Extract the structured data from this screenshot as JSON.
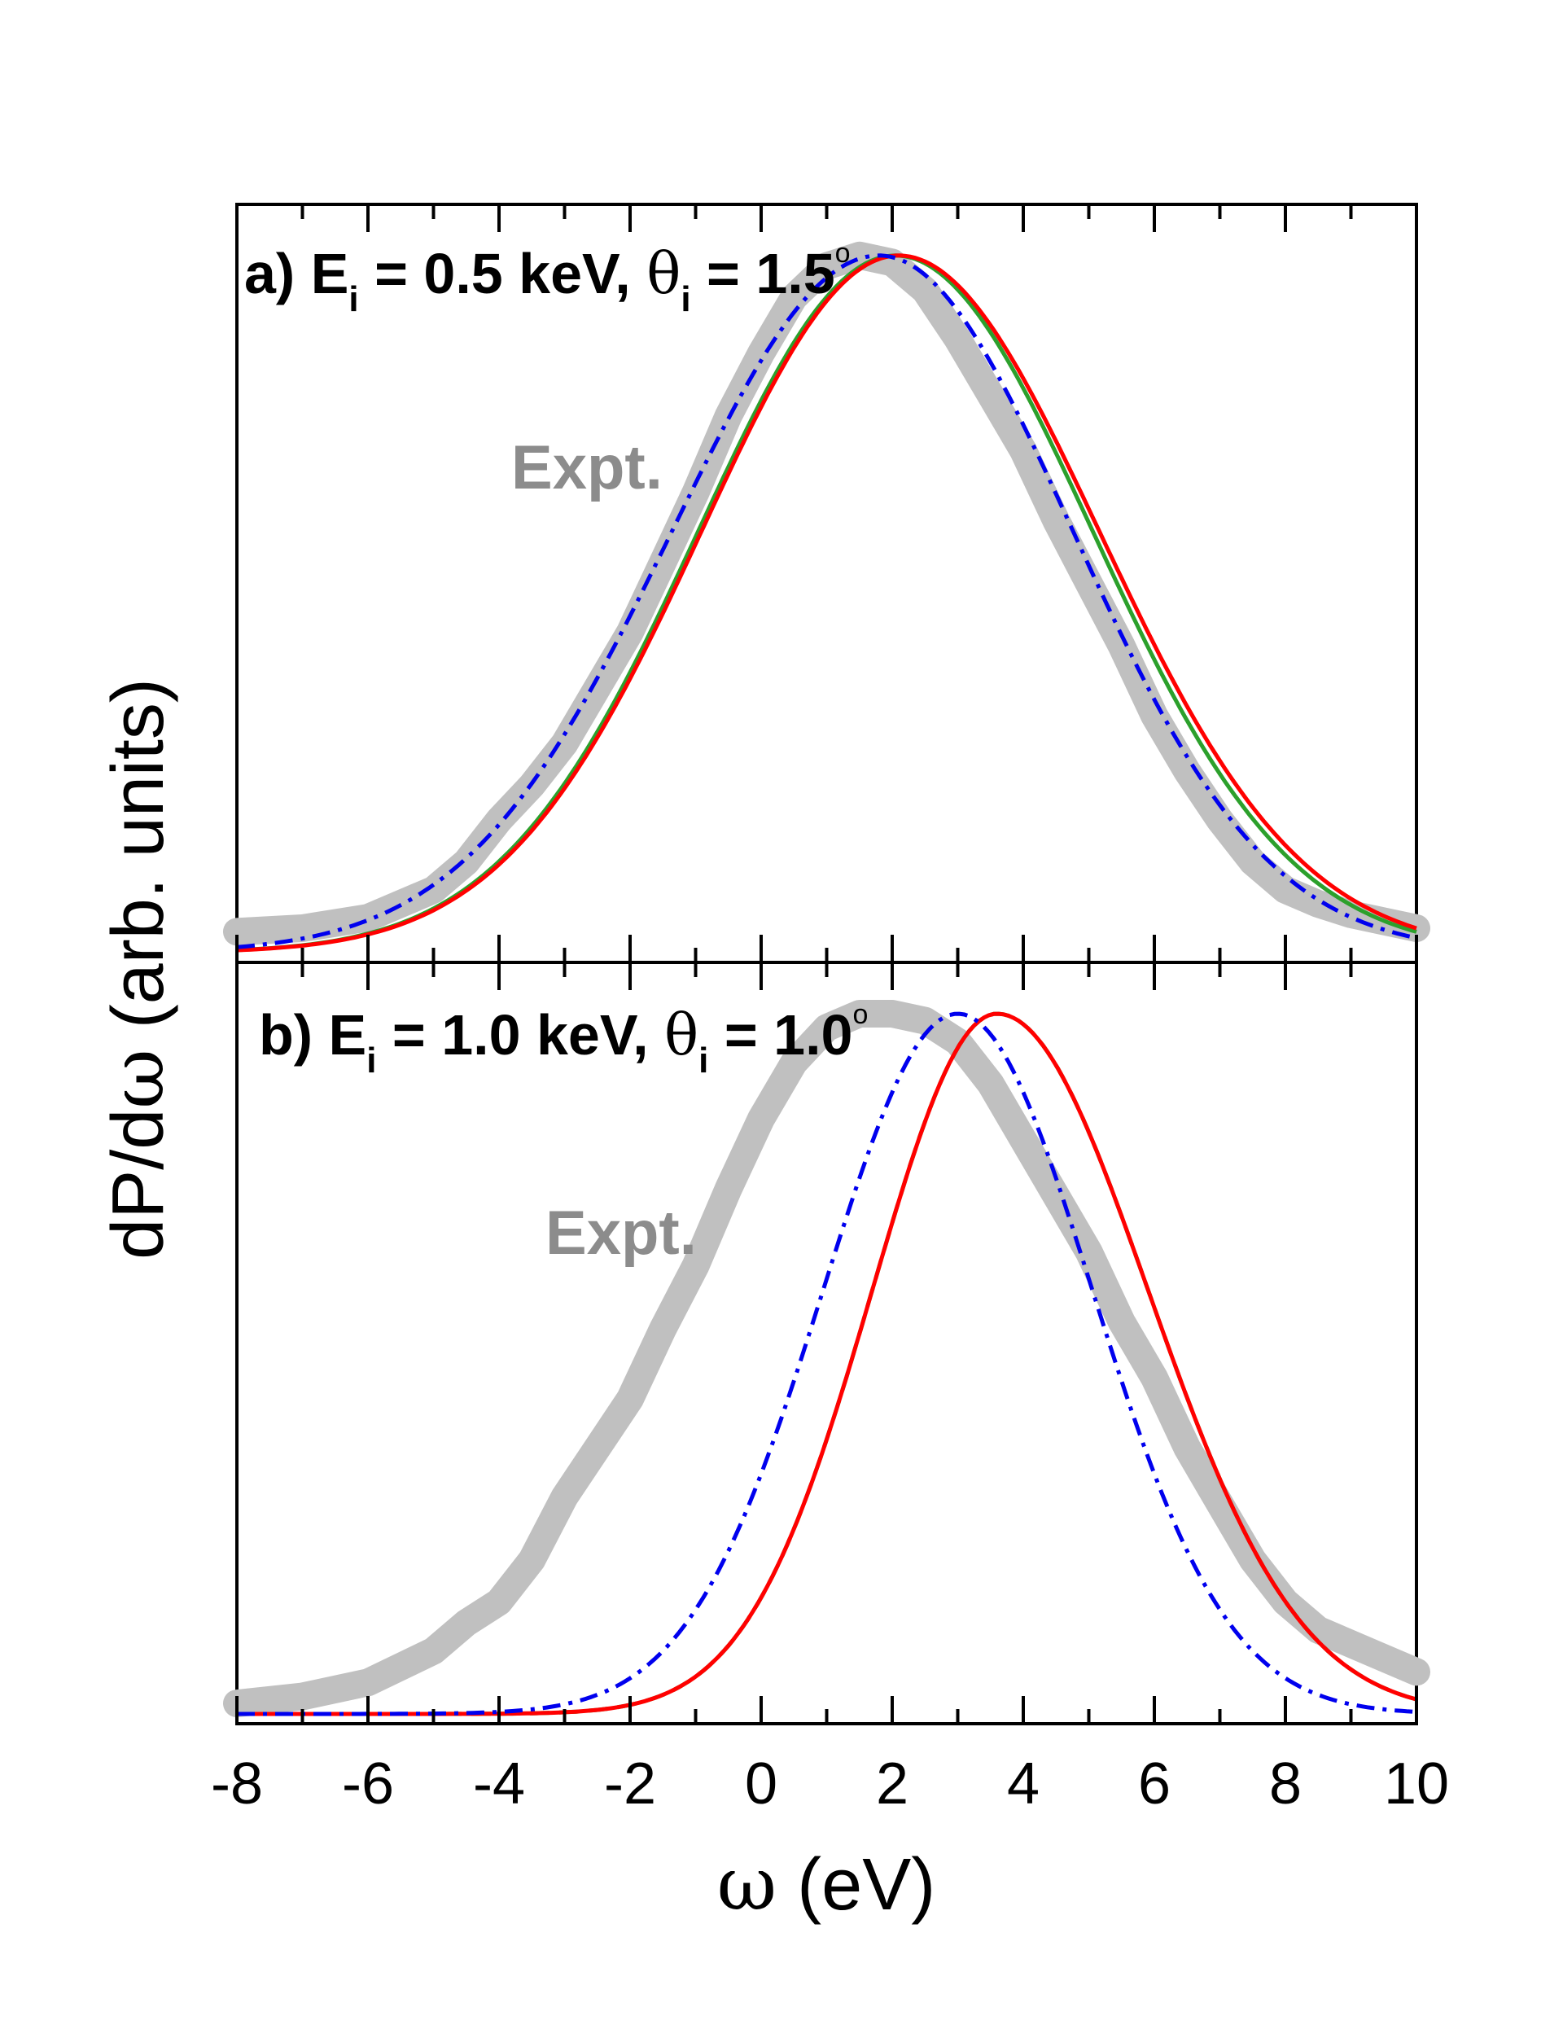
{
  "chart_data": [
    {
      "panel": "a",
      "type": "line",
      "title": {
        "prefix": "a) E",
        "sub1": "i",
        "mid": " = 0.5 keV, ",
        "theta": "θ",
        "sub2": "i",
        "suffix": " = 1.5",
        "degree": "o"
      },
      "annotation": "Expt.",
      "xlim": [
        -8,
        10
      ],
      "ylim": [
        0,
        1.05
      ],
      "series": [
        {
          "name": "Expt.",
          "color": "#c0c0c0",
          "style": "thick",
          "x": [
            -8,
            -7,
            -6,
            -5,
            -4.5,
            -4,
            -3.5,
            -3,
            -2.5,
            -2,
            -1.5,
            -1,
            -0.5,
            0,
            0.5,
            1,
            1.5,
            2,
            2.5,
            3,
            3.5,
            4,
            4.5,
            5,
            5.5,
            6,
            6.5,
            7,
            7.5,
            8,
            8.5,
            9,
            9.5,
            10
          ],
          "y": [
            0.03,
            0.035,
            0.05,
            0.09,
            0.13,
            0.19,
            0.24,
            0.3,
            0.38,
            0.46,
            0.56,
            0.66,
            0.77,
            0.86,
            0.94,
            0.985,
            1.0,
            0.99,
            0.95,
            0.88,
            0.8,
            0.72,
            0.62,
            0.53,
            0.44,
            0.34,
            0.26,
            0.19,
            0.13,
            0.09,
            0.07,
            0.055,
            0.045,
            0.035
          ]
        },
        {
          "name": "green solid",
          "color": "#2ca02c",
          "style": "solid",
          "model": {
            "mu": 2.05,
            "sigmaL": 3.0,
            "sigmaR": 3.0,
            "amp": 1.0
          }
        },
        {
          "name": "red solid",
          "color": "#ff0000",
          "style": "solid",
          "model": {
            "mu": 2.1,
            "sigmaL": 3.0,
            "sigmaR": 3.05,
            "amp": 1.0
          }
        },
        {
          "name": "blue dash-dot",
          "color": "#0000ee",
          "style": "dashdot",
          "model": {
            "mu": 1.8,
            "sigmaL": 3.15,
            "sigmaR": 2.95,
            "amp": 1.0
          }
        }
      ]
    },
    {
      "panel": "b",
      "type": "line",
      "title": {
        "prefix": "b) E",
        "sub1": "i",
        "mid": " = 1.0 keV, ",
        "theta": "θ",
        "sub2": "i",
        "suffix": " = 1.0",
        "degree": "o"
      },
      "annotation": "Expt.",
      "xlim": [
        -8,
        10
      ],
      "ylim": [
        0,
        1.05
      ],
      "series": [
        {
          "name": "Expt.",
          "color": "#c0c0c0",
          "style": "thick",
          "x": [
            -8,
            -7,
            -6,
            -5,
            -4.5,
            -4,
            -3.5,
            -3,
            -2.5,
            -2,
            -1.5,
            -1,
            -0.5,
            0,
            0.5,
            1,
            1.5,
            2,
            2.5,
            3,
            3.5,
            4,
            4.5,
            5,
            5.5,
            6,
            6.5,
            7,
            7.5,
            8,
            8.5,
            9,
            9.5,
            10
          ],
          "y": [
            0.015,
            0.025,
            0.045,
            0.09,
            0.13,
            0.16,
            0.22,
            0.31,
            0.38,
            0.45,
            0.55,
            0.64,
            0.75,
            0.85,
            0.93,
            0.98,
            1.0,
            1.0,
            0.99,
            0.96,
            0.9,
            0.82,
            0.74,
            0.66,
            0.56,
            0.48,
            0.38,
            0.3,
            0.22,
            0.16,
            0.12,
            0.1,
            0.08,
            0.06
          ]
        },
        {
          "name": "green dashed",
          "color": "#2ca02c",
          "style": "dashed",
          "model": {
            "mu": 3.6,
            "sigmaL": 1.9,
            "sigmaR": 2.3,
            "amp": 1.0
          }
        },
        {
          "name": "red solid",
          "color": "#ff0000",
          "style": "solid",
          "model": {
            "mu": 3.6,
            "sigmaL": 1.9,
            "sigmaR": 2.3,
            "amp": 1.0
          }
        },
        {
          "name": "blue dash-dot",
          "color": "#0000ee",
          "style": "dashdot",
          "model": {
            "mu": 3.0,
            "sigmaL": 2.05,
            "sigmaR": 2.05,
            "amp": 1.0
          }
        }
      ]
    }
  ],
  "axes": {
    "xlabel_symbol": "ω",
    "xlabel_unit": " (eV)",
    "ylabel_main": "dP/d",
    "ylabel_symbol": "ω",
    "ylabel_unit": " (arb. units)",
    "x_ticks": [
      "-8",
      "-6",
      "-4",
      "-2",
      "0",
      "2",
      "4",
      "6",
      "8",
      "10"
    ]
  }
}
